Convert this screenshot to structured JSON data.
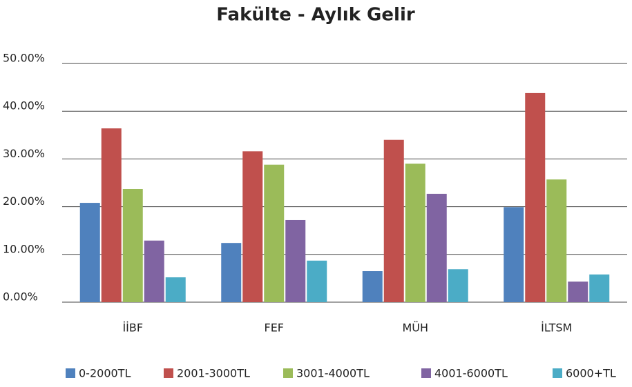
{
  "chart_data": {
    "type": "bar",
    "title": "Fakülte - Aylık Gelir",
    "categories": [
      "İİBF",
      "FEF",
      "MÜH",
      "İLTSM"
    ],
    "series": [
      {
        "name": "0-2000TL",
        "color": "#4f81bd",
        "values": [
          20.8,
          12.4,
          6.5,
          19.9
        ]
      },
      {
        "name": "2001-3000TL",
        "color": "#c0504d",
        "values": [
          36.4,
          31.6,
          34.0,
          43.8
        ]
      },
      {
        "name": "3001-4000TL",
        "color": "#9bbb59",
        "values": [
          23.7,
          28.8,
          29.0,
          25.7
        ]
      },
      {
        "name": "4001-6000TL",
        "color": "#8064a2",
        "values": [
          12.9,
          17.2,
          22.7,
          4.3
        ]
      },
      {
        "name": "6000+TL",
        "color": "#4bacc6",
        "values": [
          5.2,
          8.7,
          6.9,
          5.8
        ]
      }
    ],
    "ylim": [
      0,
      50
    ],
    "yticks": [
      {
        "value": 0,
        "label": "0.00%"
      },
      {
        "value": 10,
        "label": "10.00%"
      },
      {
        "value": 20,
        "label": "20.00%"
      },
      {
        "value": 30,
        "label": "30.00%"
      },
      {
        "value": 40,
        "label": "40.00%"
      },
      {
        "value": 50,
        "label": "50.00%"
      }
    ],
    "grid": true,
    "legend": "bottom"
  }
}
